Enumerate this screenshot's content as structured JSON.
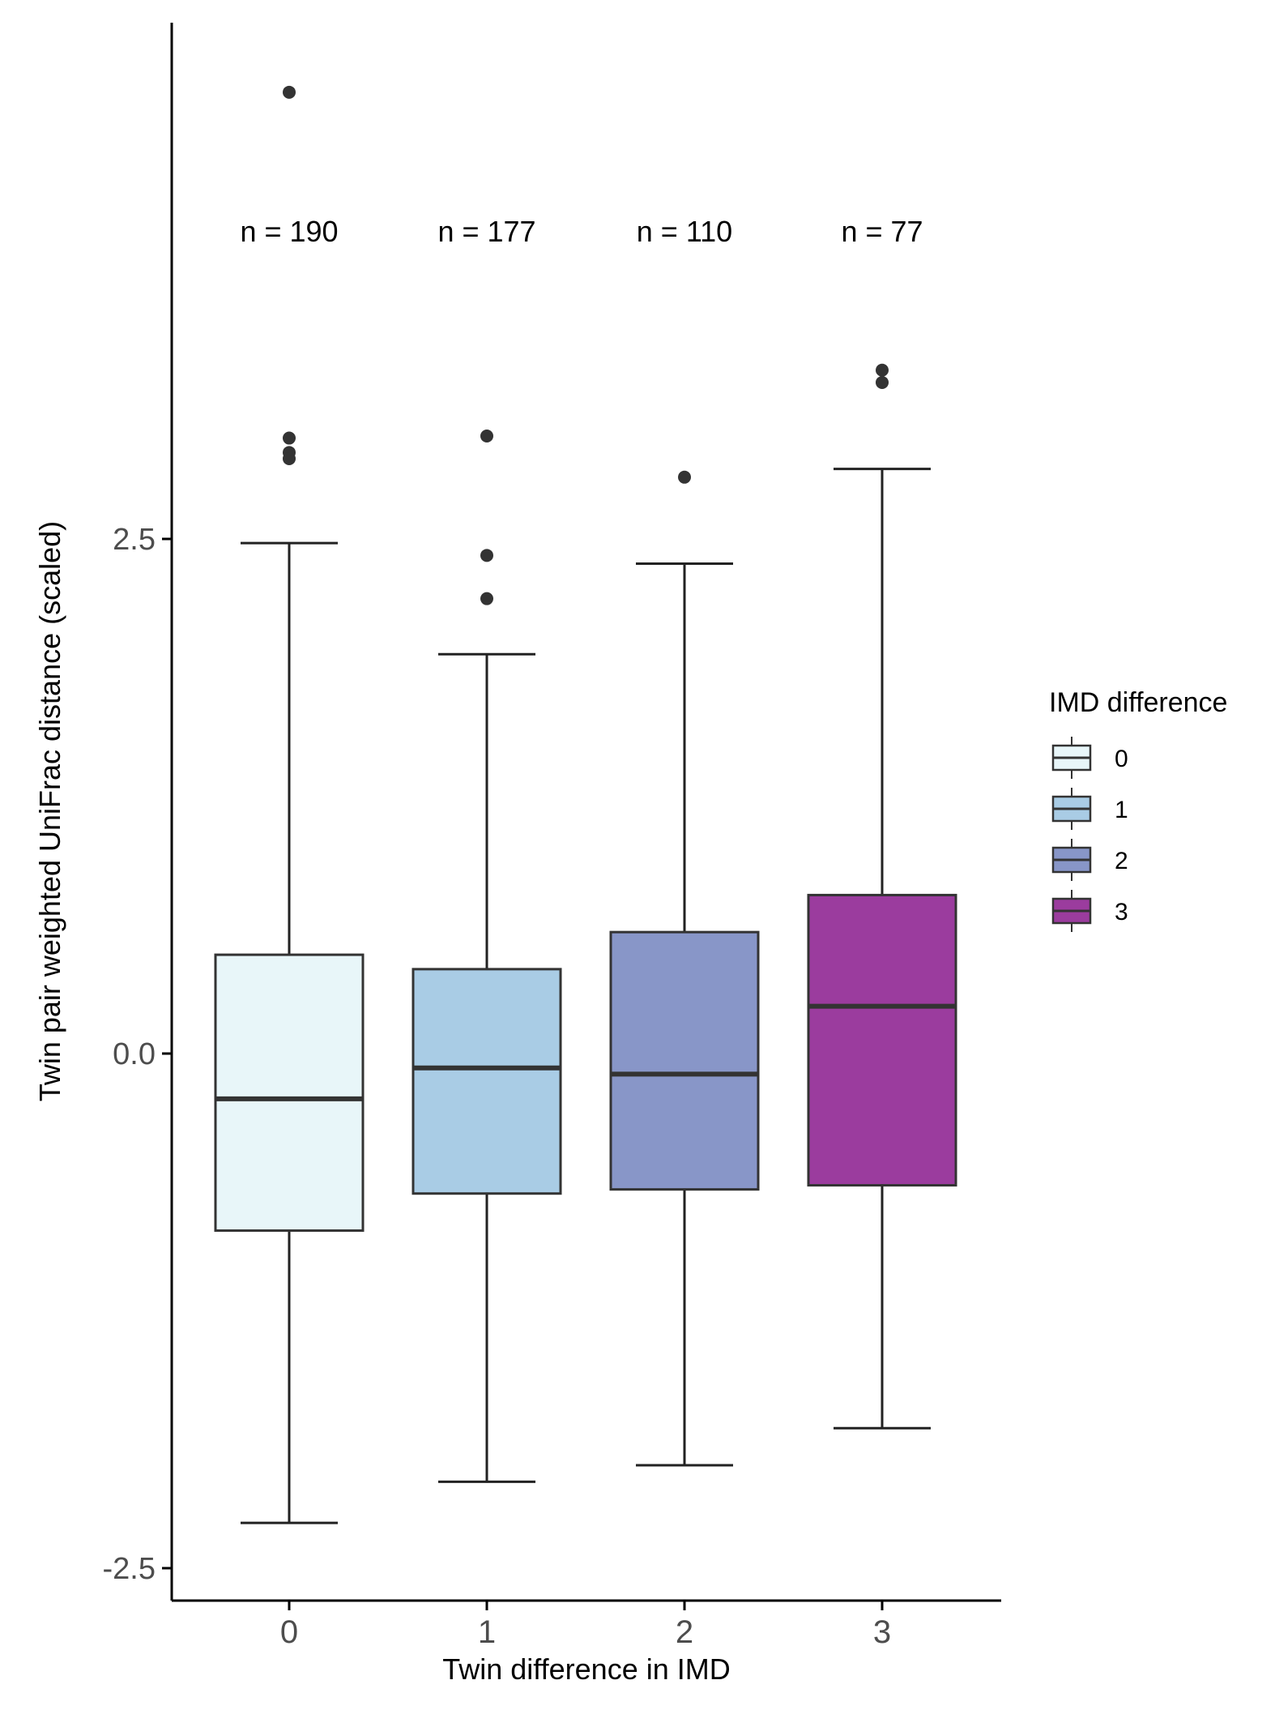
{
  "chart_data": {
    "type": "boxplot",
    "title": "",
    "xlabel": "Twin difference in IMD",
    "ylabel": "Twin pair weighted UniFrac distance (scaled)",
    "ylim": [
      -2.6,
      5.1
    ],
    "yticks": [
      -2.5,
      0.0,
      2.5
    ],
    "ytick_labels": [
      "-2.5",
      "0.0",
      "2.5"
    ],
    "categories": [
      "0",
      "1",
      "2",
      "3"
    ],
    "legend": {
      "title": "IMD difference",
      "position": "right",
      "entries": [
        "0",
        "1",
        "2",
        "3"
      ]
    },
    "colors": [
      "#e8f6f9",
      "#a9cce5",
      "#8896c8",
      "#9b3c9e"
    ],
    "grid": false,
    "boxes": [
      {
        "category": "0",
        "n_label": "n = 190",
        "whisker_low": -2.28,
        "q1": -0.86,
        "median": -0.22,
        "q3": 0.48,
        "whisker_high": 2.48,
        "outliers": [
          4.67,
          2.99,
          2.92,
          2.89
        ]
      },
      {
        "category": "1",
        "n_label": "n = 177",
        "whisker_low": -2.08,
        "q1": -0.68,
        "median": -0.07,
        "q3": 0.41,
        "whisker_high": 1.94,
        "outliers": [
          3.0,
          2.42,
          2.21
        ]
      },
      {
        "category": "2",
        "n_label": "n = 110",
        "whisker_low": -2.0,
        "q1": -0.66,
        "median": -0.1,
        "q3": 0.59,
        "whisker_high": 2.38,
        "outliers": [
          2.8
        ]
      },
      {
        "category": "3",
        "n_label": "n = 77",
        "whisker_low": -1.82,
        "q1": -0.64,
        "median": 0.23,
        "q3": 0.77,
        "whisker_high": 2.84,
        "outliers": [
          3.32,
          3.26
        ]
      }
    ]
  }
}
